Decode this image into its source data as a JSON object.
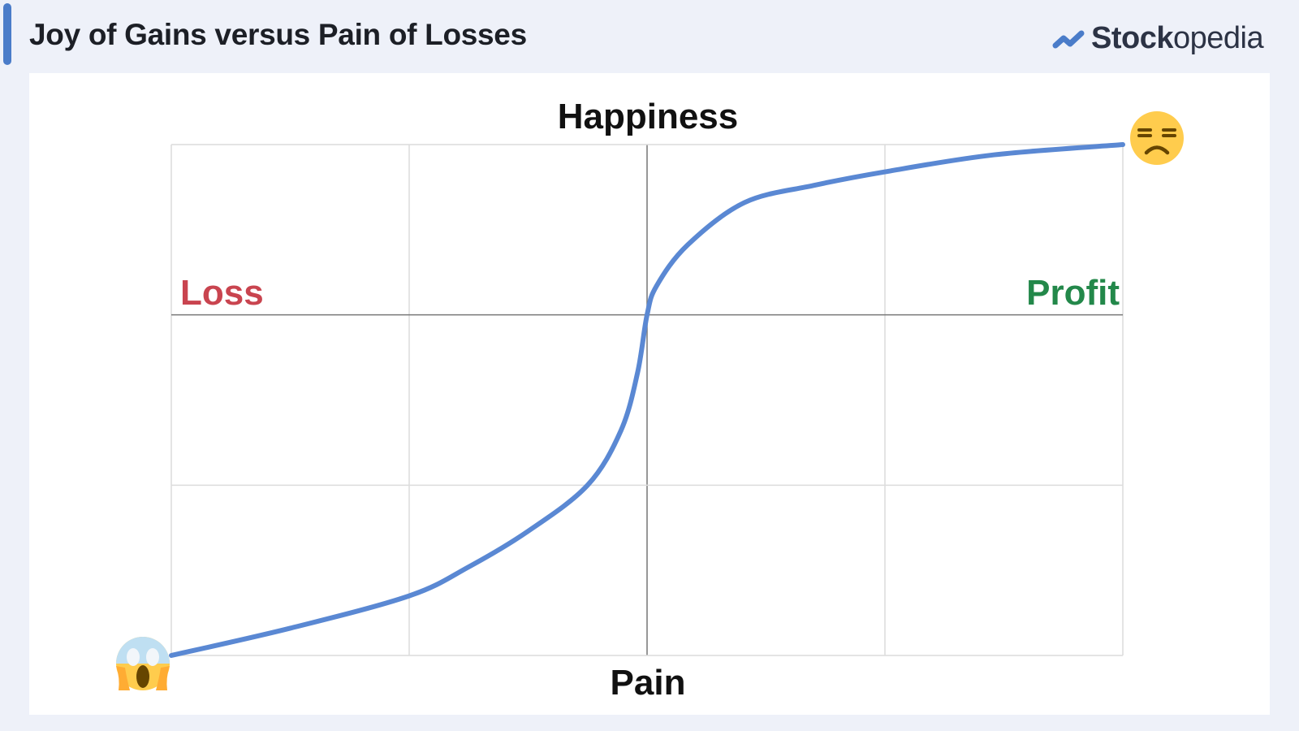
{
  "header": {
    "title": "Joy of Gains versus Pain of Losses"
  },
  "logo": {
    "bold": "Stock",
    "light": "opedia",
    "accent": "#4a7cc9"
  },
  "chart_data": {
    "type": "line",
    "title": "Happiness",
    "xlabel": "Pain",
    "annotations": [
      {
        "text": "Loss",
        "color": "#c9444f",
        "position": "upper-left"
      },
      {
        "text": "Profit",
        "color": "#23884a",
        "position": "upper-right"
      }
    ],
    "icons": {
      "start": "face-screaming-in-fear-icon",
      "end": "unamused-face-icon"
    },
    "xlim": [
      -2,
      2
    ],
    "ylim": [
      -2,
      1
    ],
    "grid": true,
    "series": [
      {
        "color": "#5a88d3",
        "x": [
          -2,
          -1.5,
          -1,
          -0.75,
          -0.5,
          -0.25,
          -0.11,
          -0.04,
          0,
          0.04,
          0.17,
          0.41,
          0.7,
          1,
          1.46,
          2
        ],
        "y": [
          -2,
          -1.84,
          -1.65,
          -1.48,
          -1.27,
          -1.0,
          -0.68,
          -0.34,
          0,
          0.17,
          0.41,
          0.66,
          0.76,
          0.84,
          0.94,
          1.0
        ]
      }
    ]
  }
}
